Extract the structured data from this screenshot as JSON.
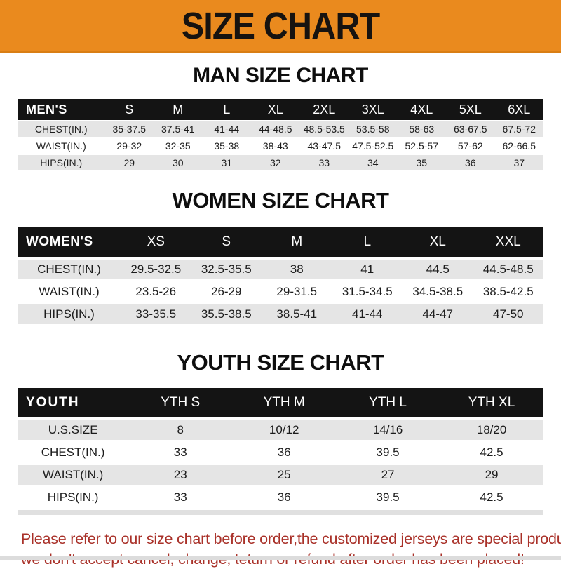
{
  "banner": {
    "title": "SIZE CHART",
    "bg_color": "#EA8A1E",
    "text_color": "#171310"
  },
  "sections": [
    {
      "title": "MAN SIZE CHART",
      "header_label": "MEN'S",
      "columns": [
        "S",
        "M",
        "L",
        "XL",
        "2XL",
        "3XL",
        "4XL",
        "5XL",
        "6XL"
      ],
      "rows": [
        {
          "label": "CHEST(IN.)",
          "values": [
            "35-37.5",
            "37.5-41",
            "41-44",
            "44-48.5",
            "48.5-53.5",
            "53.5-58",
            "58-63",
            "63-67.5",
            "67.5-72"
          ]
        },
        {
          "label": "WAIST(IN.)",
          "values": [
            "29-32",
            "32-35",
            "35-38",
            "38-43",
            "43-47.5",
            "47.5-52.5",
            "52.5-57",
            "57-62",
            "62-66.5"
          ]
        },
        {
          "label": "HIPS(IN.)",
          "values": [
            "29",
            "30",
            "31",
            "32",
            "33",
            "34",
            "35",
            "36",
            "37"
          ]
        }
      ]
    },
    {
      "title": "WOMEN SIZE CHART",
      "header_label": "WOMEN'S",
      "columns": [
        "XS",
        "S",
        "M",
        "L",
        "XL",
        "XXL"
      ],
      "rows": [
        {
          "label": "CHEST(IN.)",
          "values": [
            "29.5-32.5",
            "32.5-35.5",
            "38",
            "41",
            "44.5",
            "44.5-48.5"
          ]
        },
        {
          "label": "WAIST(IN.)",
          "values": [
            "23.5-26",
            "26-29",
            "29-31.5",
            "31.5-34.5",
            "34.5-38.5",
            "38.5-42.5"
          ]
        },
        {
          "label": "HIPS(IN.)",
          "values": [
            "33-35.5",
            "35.5-38.5",
            "38.5-41",
            "41-44",
            "44-47",
            "47-50"
          ]
        }
      ]
    },
    {
      "title": "YOUTH SIZE CHART",
      "header_label": "YOUTH",
      "columns": [
        "YTH S",
        "YTH M",
        "YTH L",
        "YTH XL"
      ],
      "rows": [
        {
          "label": "U.S.SIZE",
          "values": [
            "8",
            "10/12",
            "14/16",
            "18/20"
          ]
        },
        {
          "label": "CHEST(IN.)",
          "values": [
            "33",
            "36",
            "39.5",
            "42.5"
          ]
        },
        {
          "label": "WAIST(IN.)",
          "values": [
            "23",
            "25",
            "27",
            "29"
          ]
        },
        {
          "label": "HIPS(IN.)",
          "values": [
            "33",
            "36",
            "39.5",
            "42.5"
          ]
        }
      ]
    }
  ],
  "disclaimer": {
    "line1": "Please refer to our size chart before order,the customized jerseys are special products,",
    "line2": "we don't accept cancel, change, teturn or refund after order has been placed!",
    "color": "#A93129"
  },
  "table_colors": {
    "header_bg": "#141414",
    "header_text": "#FFFFFF",
    "odd_row_bg": "#E5E5E5",
    "even_row_bg": "#FFFFFF"
  }
}
